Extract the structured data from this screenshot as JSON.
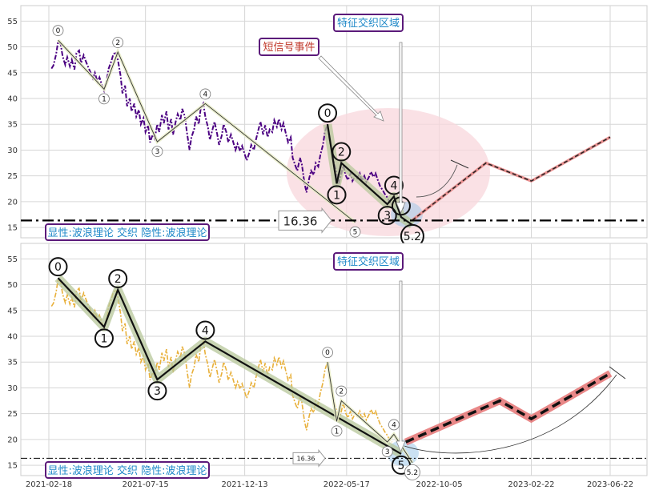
{
  "chart_data": [
    {
      "type": "line",
      "panel": "top",
      "ylim": [
        13,
        58
      ],
      "yticks": [
        15,
        20,
        25,
        30,
        35,
        40,
        45,
        50,
        55
      ],
      "grid": true,
      "price_color": "#4b0082",
      "price": [
        [
          "2021-02-22",
          45.8
        ],
        [
          "2021-02-25",
          46.4
        ],
        [
          "2021-03-01",
          48.5
        ],
        [
          "2021-03-04",
          51.0
        ],
        [
          "2021-03-08",
          50.5
        ],
        [
          "2021-03-11",
          48.2
        ],
        [
          "2021-03-15",
          46.5
        ],
        [
          "2021-03-18",
          48.0
        ],
        [
          "2021-03-22",
          46.2
        ],
        [
          "2021-03-25",
          47.5
        ],
        [
          "2021-03-29",
          45.6
        ],
        [
          "2021-04-01",
          48.8
        ],
        [
          "2021-04-05",
          49.3
        ],
        [
          "2021-04-08",
          46.8
        ],
        [
          "2021-04-12",
          48.4
        ],
        [
          "2021-04-15",
          47.3
        ],
        [
          "2021-04-19",
          46.0
        ],
        [
          "2021-04-22",
          45.2
        ],
        [
          "2021-04-26",
          43.9
        ],
        [
          "2021-04-29",
          45.0
        ],
        [
          "2021-05-03",
          43.2
        ],
        [
          "2021-05-06",
          44.1
        ],
        [
          "2021-05-10",
          42.5
        ],
        [
          "2021-05-13",
          41.5
        ],
        [
          "2021-05-17",
          43.5
        ],
        [
          "2021-05-20",
          45.8
        ],
        [
          "2021-05-24",
          47.2
        ],
        [
          "2021-05-27",
          48.5
        ],
        [
          "2021-05-31",
          49.0
        ],
        [
          "2021-06-03",
          47.5
        ],
        [
          "2021-06-07",
          44.5
        ],
        [
          "2021-06-10",
          41.0
        ],
        [
          "2021-06-14",
          42.5
        ],
        [
          "2021-06-17",
          38.5
        ],
        [
          "2021-06-21",
          40.0
        ],
        [
          "2021-06-24",
          37.5
        ],
        [
          "2021-06-28",
          39.0
        ],
        [
          "2021-07-01",
          36.5
        ],
        [
          "2021-07-05",
          37.8
        ],
        [
          "2021-07-08",
          35.0
        ],
        [
          "2021-07-12",
          36.2
        ],
        [
          "2021-07-15",
          33.5
        ],
        [
          "2021-07-19",
          34.8
        ],
        [
          "2021-07-22",
          31.5
        ],
        [
          "2021-07-26",
          33.0
        ],
        [
          "2021-07-29",
          32.2
        ],
        [
          "2021-08-02",
          35.0
        ],
        [
          "2021-08-05",
          33.5
        ],
        [
          "2021-08-09",
          36.8
        ],
        [
          "2021-08-12",
          35.2
        ],
        [
          "2021-08-16",
          37.5
        ],
        [
          "2021-08-19",
          34.0
        ],
        [
          "2021-08-23",
          36.0
        ],
        [
          "2021-08-26",
          33.0
        ],
        [
          "2021-08-30",
          35.5
        ],
        [
          "2021-09-02",
          37.0
        ],
        [
          "2021-09-06",
          35.8
        ],
        [
          "2021-09-09",
          38.0
        ],
        [
          "2021-09-13",
          36.5
        ],
        [
          "2021-09-16",
          33.5
        ],
        [
          "2021-09-20",
          30.0
        ],
        [
          "2021-09-23",
          32.5
        ],
        [
          "2021-09-27",
          34.0
        ],
        [
          "2021-09-30",
          36.5
        ],
        [
          "2021-10-04",
          35.0
        ],
        [
          "2021-10-07",
          38.0
        ],
        [
          "2021-10-11",
          39.0
        ],
        [
          "2021-10-14",
          36.5
        ],
        [
          "2021-10-18",
          34.5
        ],
        [
          "2021-10-21",
          32.0
        ],
        [
          "2021-10-25",
          34.0
        ],
        [
          "2021-10-28",
          35.5
        ],
        [
          "2021-11-01",
          33.2
        ],
        [
          "2021-11-04",
          31.0
        ],
        [
          "2021-11-08",
          32.8
        ],
        [
          "2021-11-11",
          35.0
        ],
        [
          "2021-11-15",
          33.5
        ],
        [
          "2021-11-18",
          31.5
        ],
        [
          "2021-11-22",
          33.0
        ],
        [
          "2021-11-25",
          31.8
        ],
        [
          "2021-11-29",
          30.0
        ],
        [
          "2021-12-02",
          31.2
        ],
        [
          "2021-12-06",
          29.8
        ],
        [
          "2021-12-09",
          30.8
        ],
        [
          "2021-12-13",
          29.2
        ],
        [
          "2021-12-16",
          28.0
        ],
        [
          "2021-12-20",
          29.5
        ],
        [
          "2021-12-23",
          31.0
        ],
        [
          "2021-12-27",
          30.0
        ],
        [
          "2021-12-30",
          32.0
        ],
        [
          "2022-01-03",
          34.0
        ],
        [
          "2022-01-06",
          35.5
        ],
        [
          "2022-01-10",
          33.0
        ],
        [
          "2022-01-13",
          34.8
        ],
        [
          "2022-01-17",
          32.5
        ],
        [
          "2022-01-20",
          34.0
        ],
        [
          "2022-01-24",
          33.5
        ],
        [
          "2022-01-27",
          35.8
        ],
        [
          "2022-01-31",
          34.5
        ],
        [
          "2022-02-03",
          36.0
        ],
        [
          "2022-02-07",
          34.0
        ],
        [
          "2022-02-10",
          35.2
        ],
        [
          "2022-02-14",
          33.0
        ],
        [
          "2022-02-17",
          31.5
        ],
        [
          "2022-02-21",
          32.5
        ],
        [
          "2022-02-24",
          28.5
        ],
        [
          "2022-02-28",
          27.0
        ],
        [
          "2022-03-03",
          26.0
        ],
        [
          "2022-03-07",
          28.5
        ],
        [
          "2022-03-10",
          27.2
        ],
        [
          "2022-03-14",
          23.5
        ],
        [
          "2022-03-17",
          21.8
        ],
        [
          "2022-03-21",
          24.5
        ],
        [
          "2022-03-24",
          26.0
        ],
        [
          "2022-03-28",
          25.2
        ],
        [
          "2022-03-31",
          27.5
        ],
        [
          "2022-04-04",
          26.8
        ],
        [
          "2022-04-07",
          29.0
        ],
        [
          "2022-04-11",
          31.0
        ],
        [
          "2022-04-14",
          33.5
        ],
        [
          "2022-04-18",
          35.0
        ],
        [
          "2022-04-21",
          32.0
        ],
        [
          "2022-04-25",
          29.5
        ],
        [
          "2022-04-28",
          27.5
        ],
        [
          "2022-05-02",
          25.5
        ],
        [
          "2022-05-05",
          23.5
        ],
        [
          "2022-05-09",
          25.5
        ],
        [
          "2022-05-12",
          27.0
        ],
        [
          "2022-05-16",
          25.0
        ],
        [
          "2022-05-19",
          24.2
        ],
        [
          "2022-05-23",
          25.5
        ],
        [
          "2022-05-26",
          24.0
        ],
        [
          "2022-05-30",
          25.0
        ],
        [
          "2022-06-02",
          24.5
        ],
        [
          "2022-06-06",
          25.5
        ],
        [
          "2022-06-09",
          24.0
        ],
        [
          "2022-06-13",
          25.0
        ],
        [
          "2022-06-16",
          23.8
        ],
        [
          "2022-06-20",
          24.8
        ],
        [
          "2022-06-23",
          25.8
        ],
        [
          "2022-06-27",
          24.8
        ],
        [
          "2022-06-30",
          25.5
        ],
        [
          "2022-07-04",
          24.0
        ],
        [
          "2022-07-07",
          23.0
        ],
        [
          "2022-07-11",
          22.2
        ],
        [
          "2022-07-14",
          21.5
        ],
        [
          "2022-07-18",
          20.8
        ],
        [
          "2022-07-21",
          20.0
        ],
        [
          "2022-07-25",
          19.5
        ]
      ],
      "wave_small": [
        [
          "2021-03-04",
          51.3,
          "0"
        ],
        [
          "2021-05-13",
          41.8,
          "1"
        ],
        [
          "2021-06-03",
          49.0,
          "2"
        ],
        [
          "2021-08-02",
          31.6,
          "3"
        ],
        [
          "2021-10-14",
          39.0,
          "4"
        ],
        [
          "2022-05-30",
          16.0,
          "5"
        ]
      ],
      "wave_large": [
        [
          "2022-04-18",
          35.0,
          "0"
        ],
        [
          "2022-05-02",
          23.5,
          "1"
        ],
        [
          "2022-05-09",
          27.5,
          "2"
        ],
        [
          "2022-07-18",
          19.5,
          "3"
        ],
        [
          "2022-07-28",
          21.0,
          "4"
        ],
        [
          "2022-08-08",
          17.0,
          "5"
        ],
        [
          "2022-08-25",
          15.5,
          "5.2"
        ]
      ],
      "projection": [
        [
          "2022-08-25",
          16.4
        ],
        [
          "2022-10-05",
          20.5
        ],
        [
          "2022-12-15",
          27.5
        ],
        [
          "2023-02-22",
          24.0
        ],
        [
          "2023-06-22",
          32.5
        ]
      ],
      "hline": 16.36,
      "hline_label": "16.36",
      "annotation_box": "短信号事件",
      "zone_label": "特征交织区域",
      "legend_box": "显性:波浪理论 交织 隐性:波浪理论"
    },
    {
      "type": "line",
      "panel": "bottom",
      "ylim": [
        13,
        58
      ],
      "yticks": [
        15,
        20,
        25,
        30,
        35,
        40,
        45,
        50,
        55
      ],
      "grid": true,
      "price_color": "#e8b03a",
      "wave_large": [
        [
          "2021-03-04",
          51.3,
          "0"
        ],
        [
          "2021-05-13",
          41.8,
          "1"
        ],
        [
          "2021-06-03",
          49.0,
          "2"
        ],
        [
          "2021-08-02",
          31.6,
          "3"
        ],
        [
          "2021-10-14",
          39.0,
          "4"
        ],
        [
          "2022-08-08",
          17.2,
          "5"
        ]
      ],
      "wave_small": [
        [
          "2022-04-18",
          35.0,
          "0"
        ],
        [
          "2022-05-02",
          23.5,
          "1"
        ],
        [
          "2022-05-09",
          27.5,
          "2"
        ],
        [
          "2022-07-18",
          19.5,
          "3"
        ],
        [
          "2022-07-28",
          21.0,
          "4"
        ],
        [
          "2022-08-25",
          15.5,
          "5.2"
        ]
      ],
      "projection": [
        [
          "2022-08-15",
          19.5
        ],
        [
          "2023-01-05",
          27.5
        ],
        [
          "2023-02-22",
          24.0
        ],
        [
          "2023-06-22",
          32.8
        ]
      ],
      "hline": 16.36,
      "hline_label": "16.36",
      "zone_label": "特征交织区域",
      "legend_box": "显性:波浪理论 交织 隐性:波浪理论",
      "xticks": [
        "2021-02-18",
        "2021-07-15",
        "2021-12-13",
        "2022-05-17",
        "2022-10-05",
        "2023-02-22",
        "2023-06-22"
      ]
    }
  ]
}
